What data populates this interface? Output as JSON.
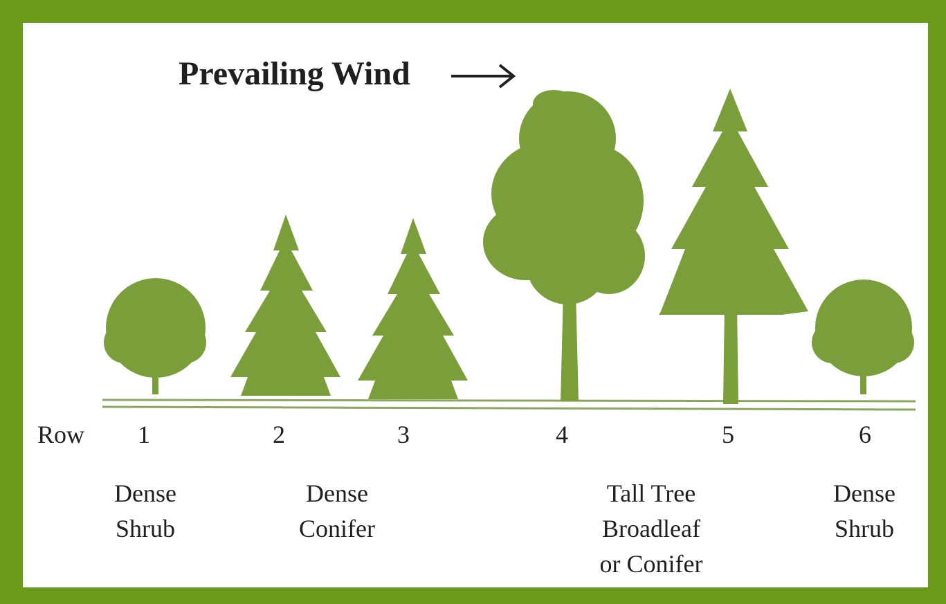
{
  "title": "Prevailing Wind",
  "row_label": "Row",
  "rows": [
    1,
    2,
    3,
    4,
    5,
    6
  ],
  "descriptions": [
    {
      "lines": [
        "Dense",
        "Shrub"
      ]
    },
    {
      "lines": [
        "Dense",
        "Conifer"
      ]
    },
    {
      "lines": [
        "Tall Tree",
        "Broadleaf",
        "or Conifer"
      ]
    },
    {
      "lines": [
        "Dense",
        "Shrub"
      ]
    }
  ]
}
